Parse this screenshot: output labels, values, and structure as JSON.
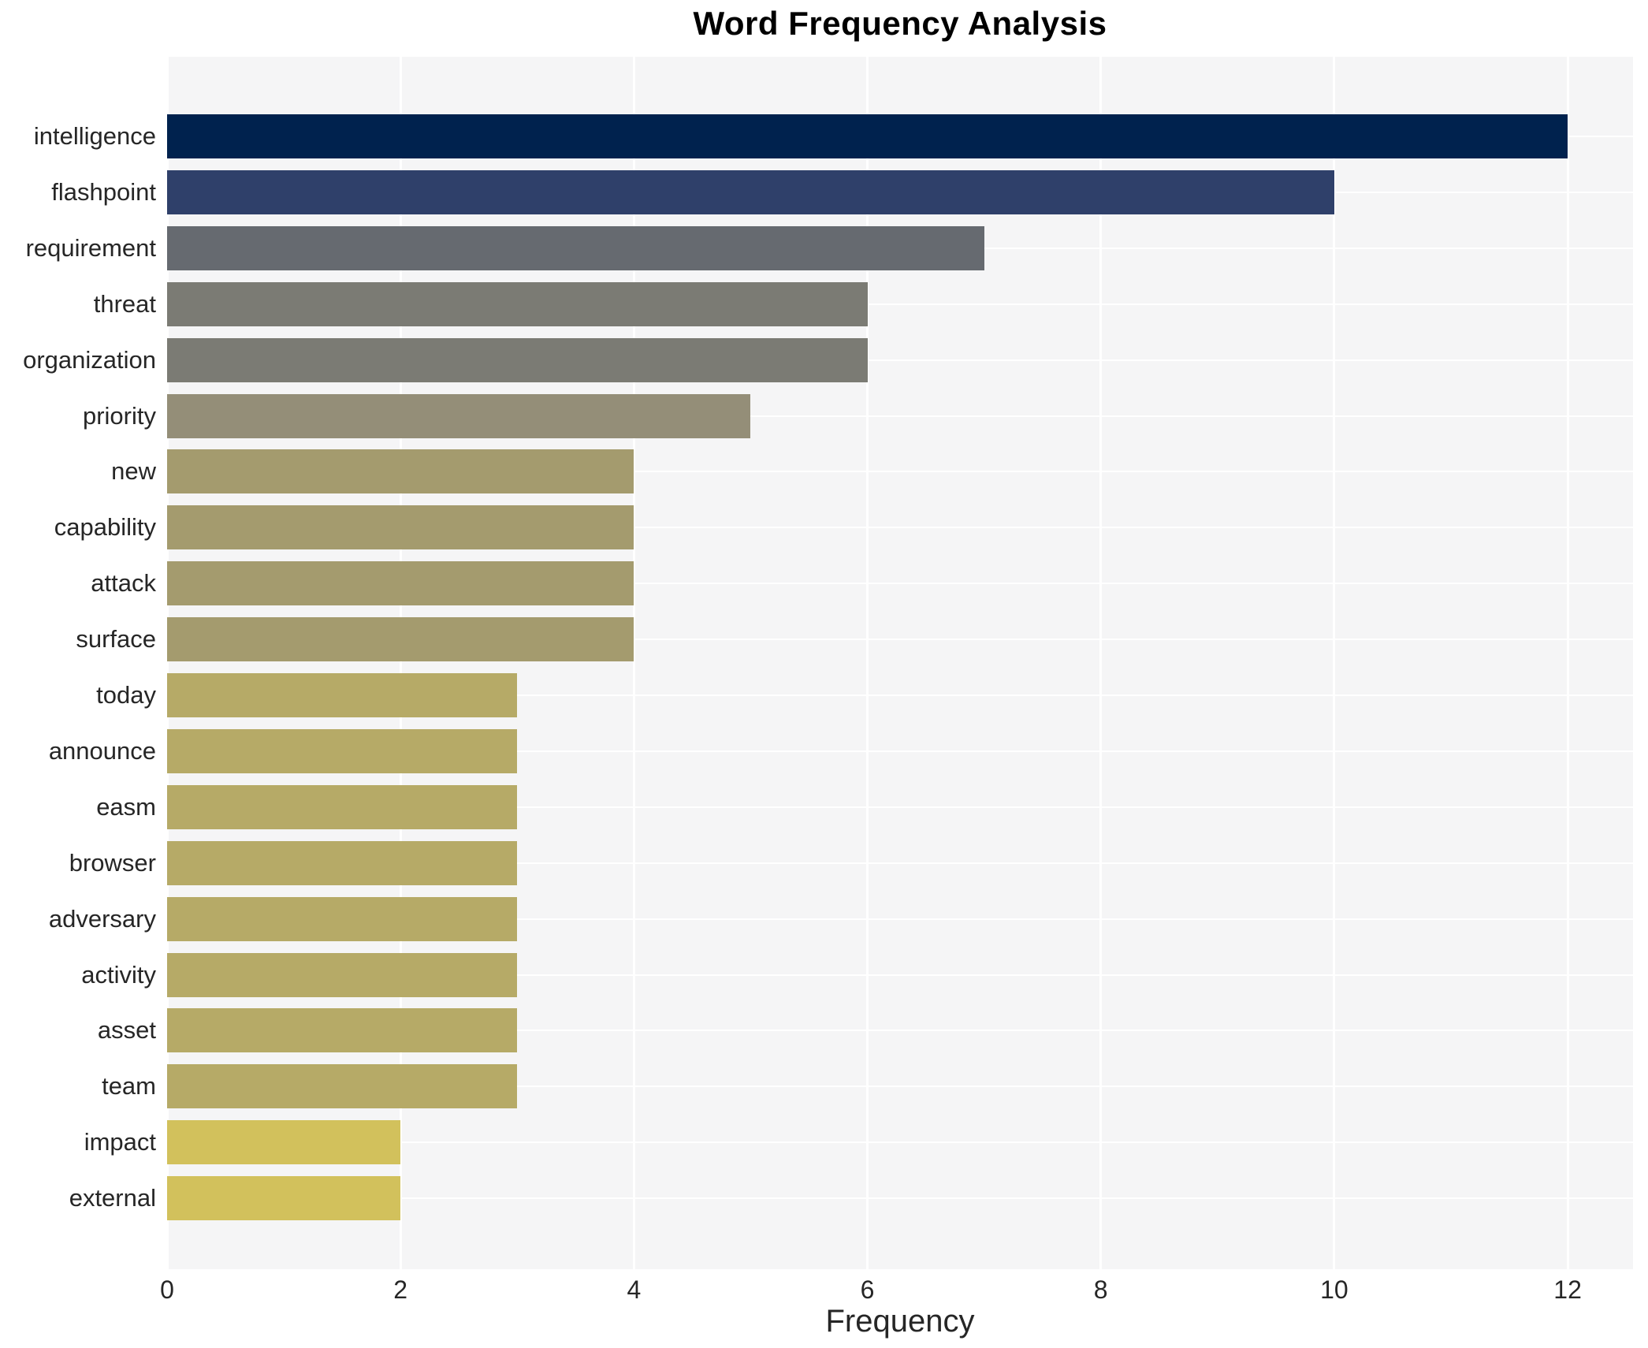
{
  "title": "Word Frequency Analysis",
  "chart_data": {
    "type": "bar",
    "orientation": "horizontal",
    "title": "Word Frequency Analysis",
    "xlabel": "Frequency",
    "ylabel": "",
    "categories": [
      "intelligence",
      "flashpoint",
      "requirement",
      "threat",
      "organization",
      "priority",
      "new",
      "capability",
      "attack",
      "surface",
      "today",
      "announce",
      "easm",
      "browser",
      "adversary",
      "activity",
      "asset",
      "team",
      "impact",
      "external"
    ],
    "values": [
      12,
      10,
      7,
      6,
      6,
      5,
      4,
      4,
      4,
      4,
      3,
      3,
      3,
      3,
      3,
      3,
      3,
      3,
      2,
      2
    ],
    "bar_colors": [
      "#00224e",
      "#2f406a",
      "#666a70",
      "#7b7b74",
      "#7b7b74",
      "#948e78",
      "#a49b6e",
      "#a49b6e",
      "#a49b6e",
      "#a49b6e",
      "#b6aa67",
      "#b6aa67",
      "#b6aa67",
      "#b6aa67",
      "#b6aa67",
      "#b6aa67",
      "#b6aa67",
      "#b6aa67",
      "#d2c15c",
      "#d2c15c"
    ],
    "xticks": [
      0,
      2,
      4,
      6,
      8,
      10,
      12
    ],
    "xlim": [
      0,
      12.56
    ],
    "grid": true,
    "legend_position": "none",
    "panel_bg": "#f5f5f6",
    "grid_color": "#ffffff",
    "text_color": "#262626",
    "title_color": "#000000"
  }
}
